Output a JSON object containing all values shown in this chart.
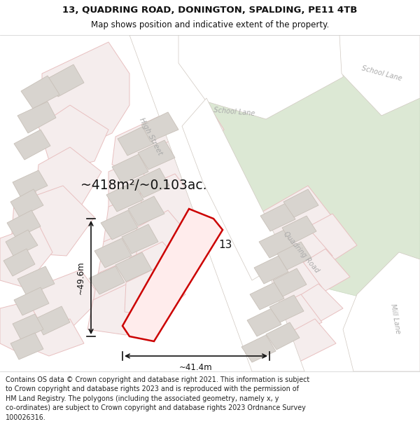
{
  "title_line1": "13, QUADRING ROAD, DONINGTON, SPALDING, PE11 4TB",
  "title_line2": "Map shows position and indicative extent of the property.",
  "area_label": "~418m²/~0.103ac.",
  "number_label": "13",
  "width_label": "~41.4m",
  "height_label": "~49.6m",
  "footer_lines": [
    "Contains OS data © Crown copyright and database right 2021. This information is subject to Crown copyright and database rights 2023 and is reproduced with the permission of",
    "HM Land Registry. The polygons (including the associated geometry, namely x, y co-ordinates) are subject to Crown copyright and database rights 2023 Ordnance Survey",
    "100026316."
  ],
  "map_bg": "#f2f0ed",
  "road_fill": "#ffffff",
  "road_edge": "#d0c8c0",
  "green_fill": "#dce8d4",
  "green_edge": "#c8d8c0",
  "building_fill": "#d8d4cf",
  "building_edge": "#c8c0b8",
  "pink_fill": "#f5eded",
  "pink_edge": "#e8c0c0",
  "property_color": "#cc0000",
  "label_color": "#aaaaaa",
  "dim_color": "#111111",
  "title_color": "#111111",
  "footer_color": "#222222",
  "title_bg": "#ffffff",
  "footer_bg": "#ffffff"
}
